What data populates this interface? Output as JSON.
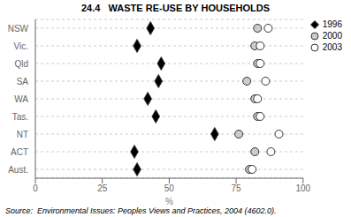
{
  "chart_data": {
    "type": "scatter",
    "title": "24.4   WASTE RE-USE BY HOUSEHOLDS",
    "xlabel": "%",
    "annotations": [
      "Source:  Environmental Issues: Peoples Views and Practices, 2004 (4602.0)."
    ],
    "categories": [
      "NSW",
      "Vic.",
      "Qld",
      "SA",
      "WA",
      "Tas.",
      "NT",
      "ACT",
      "Aust."
    ],
    "series": [
      {
        "name": "1996",
        "color": "#000000",
        "marker": "diamond",
        "values": [
          43,
          38,
          47,
          46,
          42,
          45,
          67,
          37,
          38
        ]
      },
      {
        "name": "2000",
        "color": "#cccccc",
        "marker": "circle",
        "values": [
          83,
          82,
          83,
          79,
          82,
          83,
          76,
          82,
          80
        ]
      },
      {
        "name": "2003",
        "color": "#ffffff",
        "marker": "circle",
        "values": [
          87,
          84,
          84,
          86,
          83,
          84,
          91,
          88,
          81
        ]
      }
    ],
    "xlim": [
      0,
      100
    ],
    "xticks": [
      0,
      25,
      50,
      75,
      100
    ],
    "grid": true,
    "legend": "upper right"
  }
}
